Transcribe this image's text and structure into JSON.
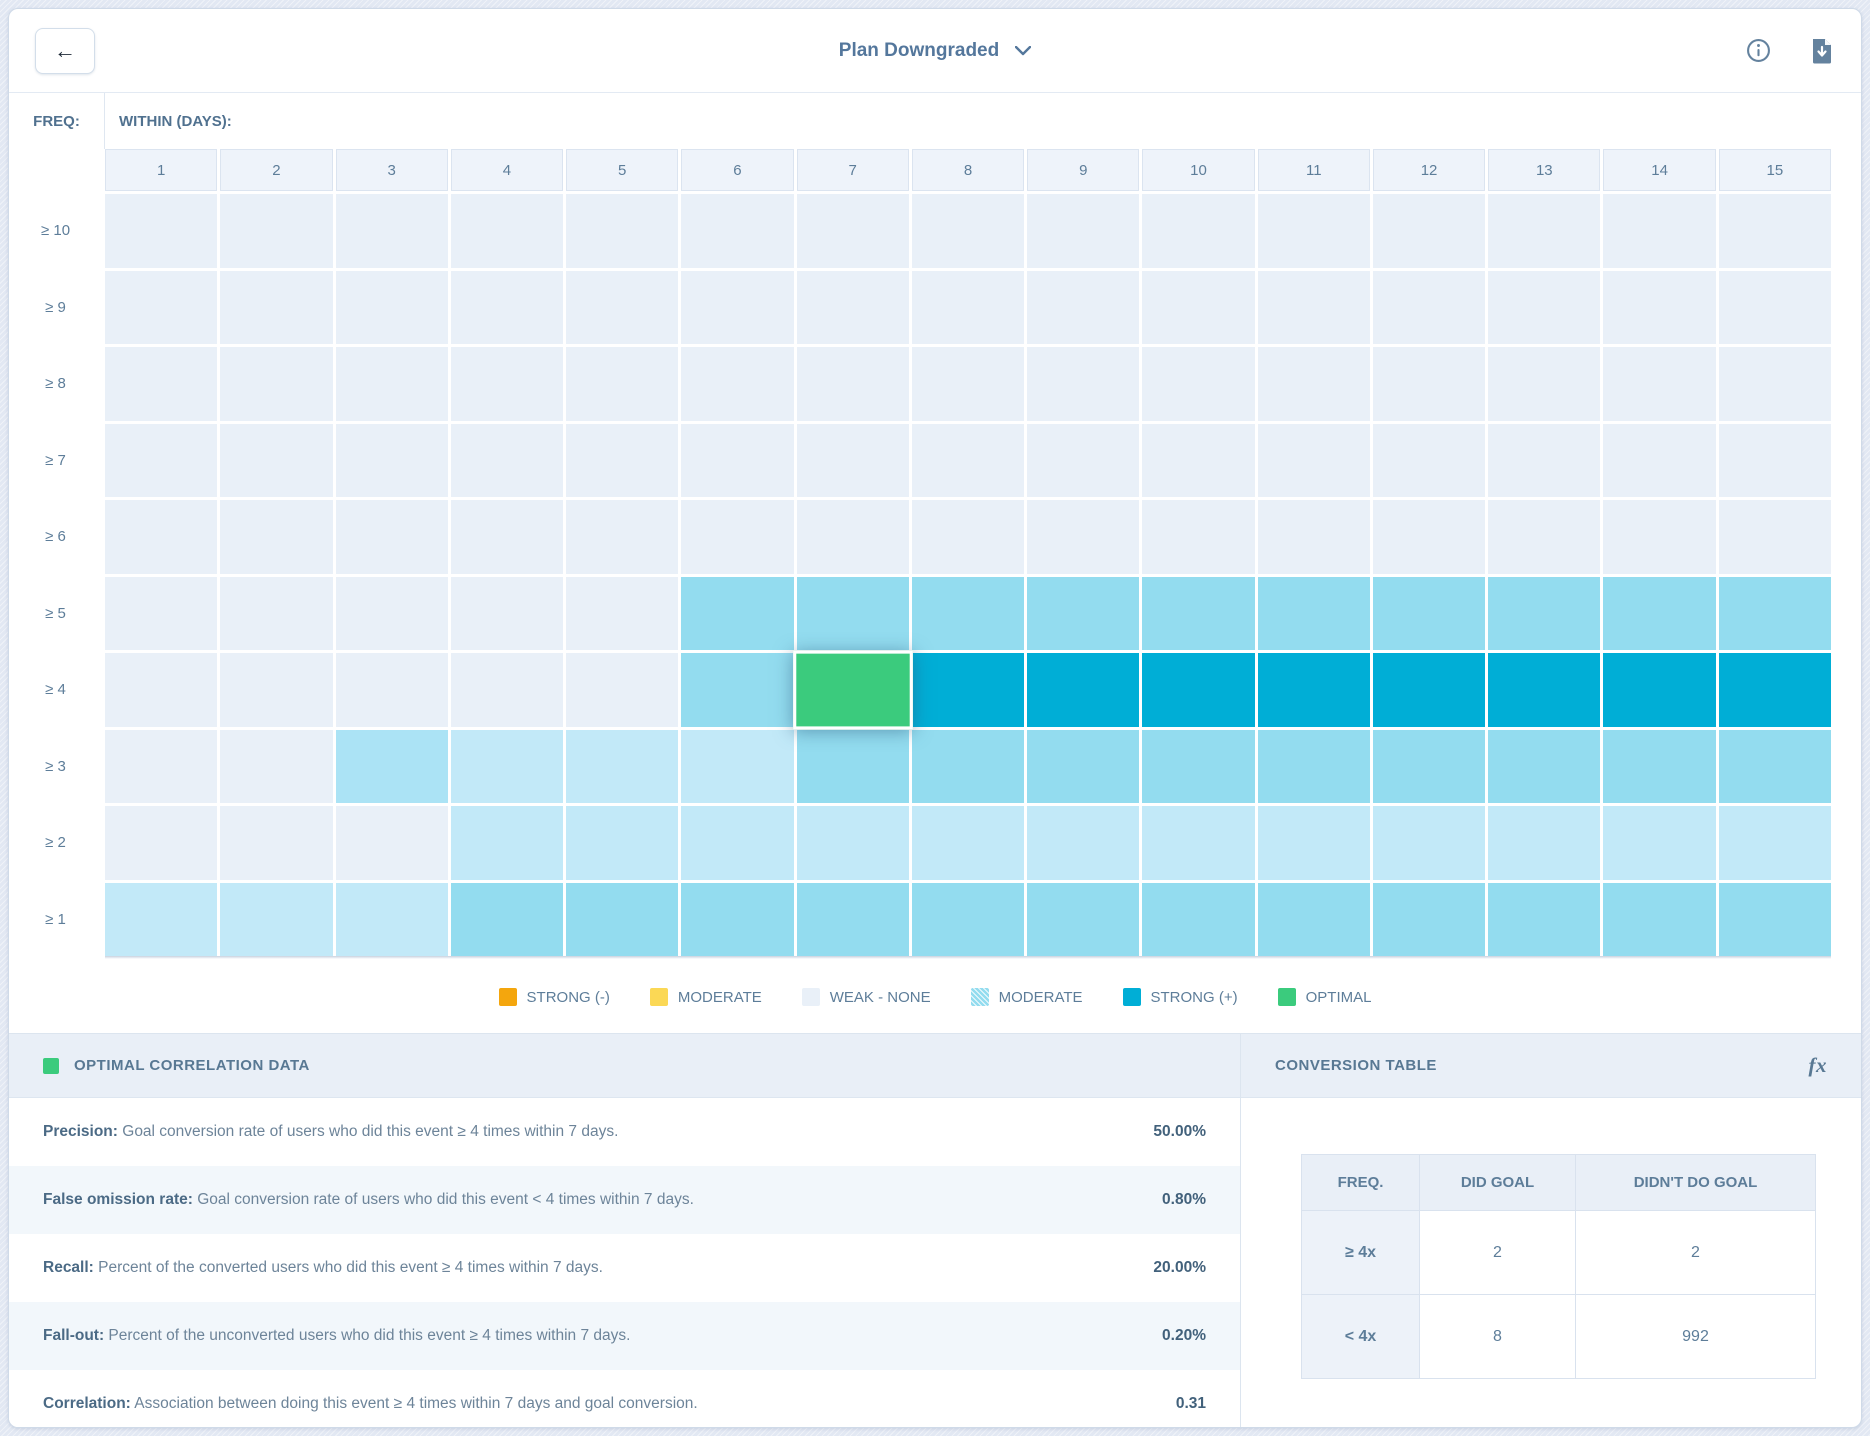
{
  "header": {
    "back_label": "←",
    "title": "Plan Downgraded"
  },
  "icons": {
    "info": "info-circle",
    "download": "document-download",
    "fx": "fx"
  },
  "colors": {
    "level_fills": {
      "0": "#e9f0f8",
      "1": "#c2e9f8",
      "2": "#abe3f5",
      "3": "#93dcef",
      "4": "#00aed6",
      "5": "#3bcb7d"
    },
    "strong_negative": "#f4a60d",
    "moderate_yellow": "#fbd855",
    "weak_none": "#e9f0f8",
    "moderate_blue": "#93dcef",
    "strong_positive": "#00aed6",
    "optimal_green": "#3bcb7d",
    "slate_text": "#5d7d99"
  },
  "chart_data": {
    "type": "heatmap",
    "title": "Plan Downgraded",
    "xlabel": "WITHIN (DAYS):",
    "ylabel": "FREQ:",
    "x": [
      "1",
      "2",
      "3",
      "4",
      "5",
      "6",
      "7",
      "8",
      "9",
      "10",
      "11",
      "12",
      "13",
      "14",
      "15"
    ],
    "y": [
      "≥ 10",
      "≥ 9",
      "≥ 8",
      "≥ 7",
      "≥ 6",
      "≥ 5",
      "≥ 4",
      "≥ 3",
      "≥ 2",
      "≥ 1"
    ],
    "level_names": {
      "0": "weak-none",
      "1": "moderate-lighter",
      "2": "moderate-light",
      "3": "moderate",
      "4": "strong-positive",
      "5": "optimal-selected"
    },
    "values": [
      [
        0,
        0,
        0,
        0,
        0,
        0,
        0,
        0,
        0,
        0,
        0,
        0,
        0,
        0,
        0
      ],
      [
        0,
        0,
        0,
        0,
        0,
        0,
        0,
        0,
        0,
        0,
        0,
        0,
        0,
        0,
        0
      ],
      [
        0,
        0,
        0,
        0,
        0,
        0,
        0,
        0,
        0,
        0,
        0,
        0,
        0,
        0,
        0
      ],
      [
        0,
        0,
        0,
        0,
        0,
        0,
        0,
        0,
        0,
        0,
        0,
        0,
        0,
        0,
        0
      ],
      [
        0,
        0,
        0,
        0,
        0,
        0,
        0,
        0,
        0,
        0,
        0,
        0,
        0,
        0,
        0
      ],
      [
        0,
        0,
        0,
        0,
        0,
        3,
        3,
        3,
        3,
        3,
        3,
        3,
        3,
        3,
        3
      ],
      [
        0,
        0,
        0,
        0,
        0,
        3,
        5,
        4,
        4,
        4,
        4,
        4,
        4,
        4,
        4
      ],
      [
        0,
        0,
        2,
        1,
        1,
        1,
        3,
        3,
        3,
        3,
        3,
        3,
        3,
        3,
        3
      ],
      [
        0,
        0,
        0,
        1,
        1,
        1,
        1,
        1,
        1,
        1,
        1,
        1,
        1,
        1,
        1
      ],
      [
        1,
        1,
        1,
        3,
        3,
        3,
        3,
        3,
        3,
        3,
        3,
        3,
        3,
        3,
        3
      ]
    ],
    "optimal_cell": {
      "freq": "≥ 4",
      "within_days": "7"
    },
    "legend_position": "bottom",
    "grid": true
  },
  "legend": [
    {
      "label": "STRONG (-)",
      "color": "#f4a60d",
      "hatch": false
    },
    {
      "label": "MODERATE",
      "color": "#fbd855",
      "hatch": false
    },
    {
      "label": "WEAK - NONE",
      "color": "#e9f0f8",
      "hatch": false
    },
    {
      "label": "MODERATE",
      "color": "#93dcef",
      "hatch": true
    },
    {
      "label": "STRONG (+)",
      "color": "#00aed6",
      "hatch": false
    },
    {
      "label": "OPTIMAL",
      "color": "#3bcb7d",
      "hatch": false
    }
  ],
  "optimal_panel": {
    "title": "OPTIMAL CORRELATION DATA",
    "swatch_color": "#3bcb7d",
    "rows": [
      {
        "label": "Precision:",
        "desc": " Goal conversion rate of users who did this event ≥ 4 times within 7 days.",
        "value": "50.00%"
      },
      {
        "label": "False omission rate:",
        "desc": " Goal conversion rate of users who did this event < 4 times within 7 days.",
        "value": "0.80%"
      },
      {
        "label": "Recall:",
        "desc": " Percent of the converted users who did this event ≥ 4 times within 7 days.",
        "value": "20.00%"
      },
      {
        "label": "Fall-out:",
        "desc": " Percent of the unconverted users who did this event ≥ 4 times within 7 days.",
        "value": "0.20%"
      },
      {
        "label": "Correlation:",
        "desc": " Association between doing this event ≥ 4 times within 7 days and goal conversion.",
        "value": "0.31"
      }
    ]
  },
  "conversion_panel": {
    "title": "CONVERSION TABLE",
    "columns": [
      "FREQ.",
      "DID GOAL",
      "DIDN'T DO GOAL"
    ],
    "rows": [
      {
        "freq": "≥ 4x",
        "did": "2",
        "didnt": "2"
      },
      {
        "freq": "< 4x",
        "did": "8",
        "didnt": "992"
      }
    ]
  }
}
